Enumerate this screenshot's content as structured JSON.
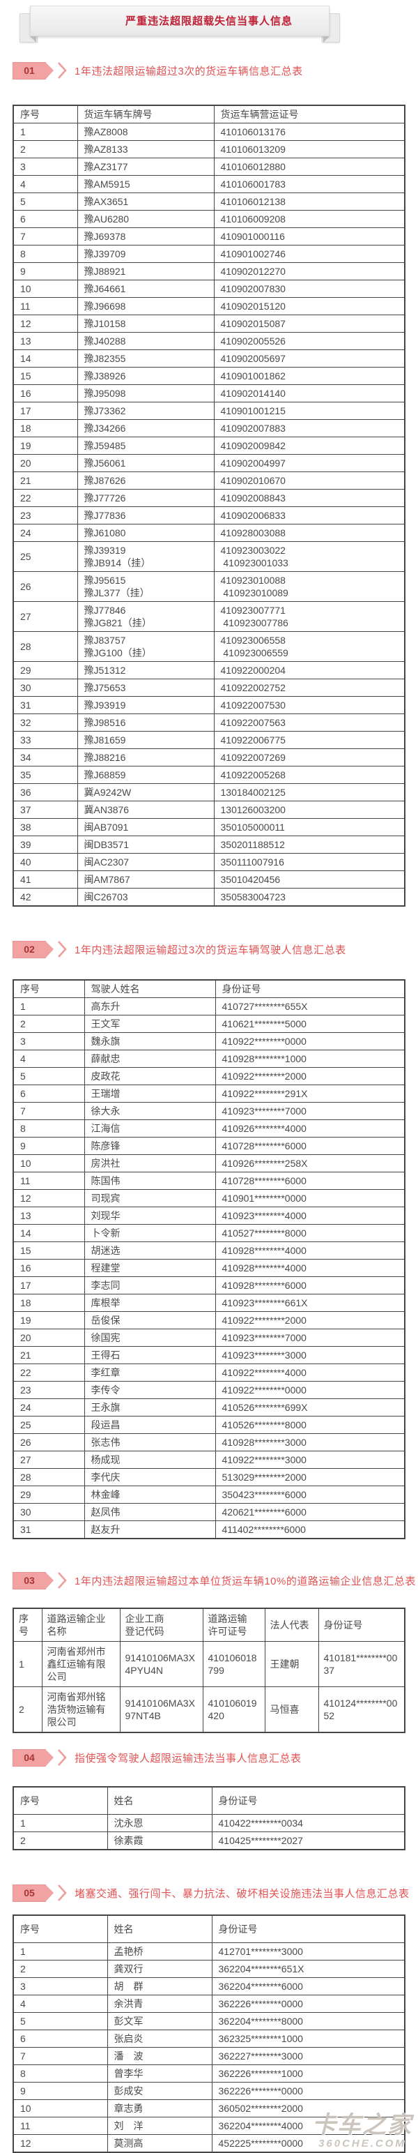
{
  "banner": {
    "title": "严重违法超限超载失信当事人信息"
  },
  "watermark": {
    "line1": "卡车之家",
    "line2": "360CHE.COM"
  },
  "colors": {
    "accent_red": "#e25252",
    "banner_red": "#bf2136",
    "badge_pink": "#f2a2a2",
    "badge_text_red": "#a93434",
    "table_border": "#454545",
    "ribbon_gray": "#ececec",
    "watermark_gray": "#c9c2ba"
  },
  "sections": [
    {
      "badge": "01",
      "title": "1年违法超限运输超过3次的货运车辆信息汇总表",
      "columns": [
        "序号",
        "货运车辆车牌号",
        "货运车辆营运证号"
      ],
      "rows": [
        [
          "1",
          "豫AZ8008",
          "410106013176"
        ],
        [
          "2",
          "豫AZ8133",
          "410106013209"
        ],
        [
          "3",
          "豫AZ3177",
          "410106012880"
        ],
        [
          "4",
          "豫AM5915",
          "410106001783"
        ],
        [
          "5",
          "豫AX3651",
          "410106012138"
        ],
        [
          "6",
          "豫AU6280",
          "410106009208"
        ],
        [
          "7",
          "豫J69378",
          "410901000116"
        ],
        [
          "8",
          "豫J39709",
          "410901002746"
        ],
        [
          "9",
          "豫J88921",
          "410902012270"
        ],
        [
          "10",
          "豫J64661",
          "410902007830"
        ],
        [
          "11",
          "豫J96698",
          "410902015120"
        ],
        [
          "12",
          "豫J10158",
          "410902015087"
        ],
        [
          "13",
          "豫J40288",
          "410902005526"
        ],
        [
          "14",
          "豫J82355",
          "410902005697"
        ],
        [
          "15",
          "豫J38926",
          "410901001862"
        ],
        [
          "16",
          "豫J95098",
          "410902014140"
        ],
        [
          "17",
          "豫J73362",
          "410901001215"
        ],
        [
          "18",
          "豫J34266",
          "410902007883"
        ],
        [
          "19",
          "豫J59485",
          "410902009842"
        ],
        [
          "20",
          "豫J56061",
          "410902004997"
        ],
        [
          "21",
          "豫J87626",
          "410902010670"
        ],
        [
          "22",
          "豫J77726",
          "410902008843"
        ],
        [
          "23",
          "豫J77836",
          "410902006833"
        ],
        [
          "24",
          "豫J61080",
          "410928003088"
        ],
        [
          "25",
          "豫J39319\n豫JB914（挂）",
          "410923003022\n 410923001033"
        ],
        [
          "26",
          "豫J95615\n豫JL377（挂）",
          "410923010088\n 410923010089"
        ],
        [
          "27",
          "豫J77846\n豫JG821（挂）",
          "410923007771\n 410923007786"
        ],
        [
          "28",
          "豫J83757\n豫JG100（挂）",
          "410923006558\n 410923006559"
        ],
        [
          "29",
          "豫J51312",
          "410922000204"
        ],
        [
          "30",
          "豫J75653",
          "410922002752"
        ],
        [
          "31",
          "豫J93919",
          "410922007530"
        ],
        [
          "32",
          "豫J98516",
          "410922007563"
        ],
        [
          "33",
          "豫J81659",
          "410922006775"
        ],
        [
          "34",
          "豫J88216",
          "410922007269"
        ],
        [
          "35",
          "豫J68859",
          "410922005268"
        ],
        [
          "36",
          "冀A9242W",
          "130184002125"
        ],
        [
          "37",
          "冀AN3876",
          "130126003200"
        ],
        [
          "38",
          "闽AB7091",
          "350105000011"
        ],
        [
          "39",
          "闽DB3571",
          "350201188512"
        ],
        [
          "40",
          "闽AC2307",
          "350111007916"
        ],
        [
          "41",
          "闽AM7867",
          "35010420456"
        ],
        [
          "42",
          "闽C26703",
          "350583004723"
        ]
      ]
    },
    {
      "badge": "02",
      "title": "1年内违法超限运输超过3次的货运车辆驾驶人信息汇总表",
      "columns": [
        "序号",
        "驾驶人姓名",
        "身份证号"
      ],
      "rows": [
        [
          "1",
          "高东升",
          "410727********655X"
        ],
        [
          "2",
          "王文军",
          "410621********5000"
        ],
        [
          "3",
          "魏永旗",
          "410922********0000"
        ],
        [
          "4",
          "薛献忠",
          "410928********1000"
        ],
        [
          "5",
          "皮政花",
          "410922********2000"
        ],
        [
          "6",
          "王瑞增",
          "410922********291X"
        ],
        [
          "7",
          "徐大永",
          "410923********7000"
        ],
        [
          "8",
          "江海信",
          "410926********4000"
        ],
        [
          "9",
          "陈彦锋",
          "410728********6000"
        ],
        [
          "10",
          "房洪社",
          "410926********258X"
        ],
        [
          "11",
          "陈国伟",
          "410728********6000"
        ],
        [
          "12",
          "司现宾",
          "410901********0000"
        ],
        [
          "13",
          "刘现华",
          "410923********4000"
        ],
        [
          "14",
          "卜令新",
          "410527********8000"
        ],
        [
          "15",
          "胡迷选",
          "410928********4000"
        ],
        [
          "16",
          "程建堂",
          "410928********4000"
        ],
        [
          "17",
          "李志同",
          "410928********6000"
        ],
        [
          "18",
          "库根举",
          "410923********661X"
        ],
        [
          "19",
          "岳俊保",
          "410922********2000"
        ],
        [
          "20",
          "徐国宪",
          "410923********7000"
        ],
        [
          "21",
          "王得石",
          "410923********3000"
        ],
        [
          "22",
          "李红章",
          "410922********4000"
        ],
        [
          "23",
          "李传令",
          "410922********0000"
        ],
        [
          "24",
          "王永旗",
          "410526********699X"
        ],
        [
          "25",
          "段运昌",
          "410526********8000"
        ],
        [
          "26",
          "张志伟",
          "410928********3000"
        ],
        [
          "27",
          "杨成现",
          "410922********3000"
        ],
        [
          "28",
          "李代庆",
          "513029********2000"
        ],
        [
          "29",
          "林金峰",
          "350423********6000"
        ],
        [
          "30",
          "赵凤伟",
          "420621********6000"
        ],
        [
          "31",
          "赵友升",
          "411402********6000"
        ]
      ]
    },
    {
      "badge": "03",
      "title": "1年内违法超限运输超过本单位货运车辆10%的道路运输企业信息汇总表",
      "columns": [
        "序号",
        "道路运输企业名称",
        "企业工商\n登记代码",
        "道路运输\n许可证号",
        "法人代表",
        "身份证号"
      ],
      "rows": [
        [
          "1",
          "河南省郑州市鑫红运输有限公司",
          "91410106MA3X4PYU4N",
          "410106018799",
          "王建朝",
          "410181********0037"
        ],
        [
          "2",
          "河南省郑州铭浩货物运输有限公司",
          "91410106MA3X97NT4B",
          "410106019420",
          "马恒喜",
          "410124********0052"
        ]
      ]
    },
    {
      "badge": "04",
      "title": "指使强令驾驶人超限运输违法当事人信息汇总表",
      "columns": [
        "序号",
        "姓名",
        "身份证号"
      ],
      "rows": [
        [
          "1",
          "沈永恩",
          "410422********0034"
        ],
        [
          "2",
          "徐素霞",
          "410425********2027"
        ]
      ]
    },
    {
      "badge": "05",
      "title": "堵塞交通、强行闯卡、暴力抗法、破坏相关设施违法当事人信息汇总表",
      "columns": [
        "序号",
        "姓名",
        "身份证号"
      ],
      "rows": [
        [
          "1",
          "孟艳桥",
          "412701********3000"
        ],
        [
          "2",
          "龚双行",
          "362204********651X"
        ],
        [
          "3",
          "胡　群",
          "362204********6000"
        ],
        [
          "4",
          "余洪青",
          "362226********0000"
        ],
        [
          "5",
          "彭文军",
          "362204********8000"
        ],
        [
          "6",
          "张启炎",
          "362325********1000"
        ],
        [
          "7",
          "潘　波",
          "362227********3000"
        ],
        [
          "8",
          "曾李华",
          "362226********1000"
        ],
        [
          "9",
          "彭成安",
          "362226********0000"
        ],
        [
          "10",
          "章志勇",
          "360502********2000"
        ],
        [
          "11",
          "刘　洋",
          "362204********4000"
        ],
        [
          "12",
          "莫测高",
          "452225********0000"
        ]
      ]
    }
  ]
}
